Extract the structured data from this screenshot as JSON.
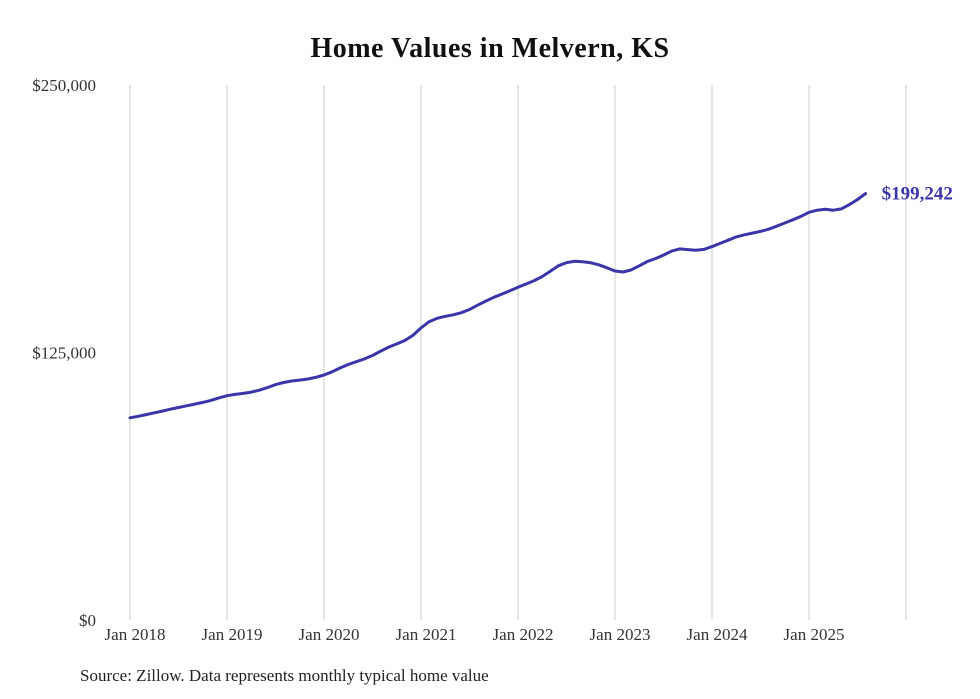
{
  "page": {
    "source_note": "Source: Zillow. Data represents monthly typical home value"
  },
  "chart_data": {
    "type": "line",
    "title": "Home Values in Melvern, KS",
    "series_name": "Monthly typical home value",
    "x_start": "Jan 2018",
    "x_end": "Aug 2025",
    "x_tick_labels": [
      "Jan 2018",
      "Jan 2019",
      "Jan 2020",
      "Jan 2021",
      "Jan 2022",
      "Jan 2023",
      "Jan 2024",
      "Jan 2025"
    ],
    "y_tick_labels": [
      "$0",
      "$125,000",
      "$250,000"
    ],
    "y_ticks": [
      0,
      125000,
      250000
    ],
    "ylim": [
      0,
      250000
    ],
    "grid": "vertical-only",
    "legend": "none",
    "line_color": "#3a35a8",
    "end_label": "$199,242",
    "end_value": 199242,
    "values": [
      94500,
      95200,
      96000,
      96800,
      97600,
      98500,
      99300,
      100100,
      100900,
      101700,
      102600,
      103800,
      104800,
      105400,
      105900,
      106500,
      107400,
      108600,
      110000,
      111000,
      111700,
      112100,
      112600,
      113400,
      114500,
      116000,
      117800,
      119400,
      120700,
      122000,
      123600,
      125600,
      127500,
      129000,
      130600,
      133000,
      136500,
      139400,
      141000,
      141900,
      142600,
      143600,
      145100,
      147100,
      149000,
      150800,
      152300,
      153900,
      155500,
      157000,
      158600,
      160500,
      163000,
      165500,
      167000,
      167600,
      167400,
      166900,
      166000,
      164600,
      163100,
      162600,
      163600,
      165500,
      167500,
      168900,
      170500,
      172400,
      173400,
      173100,
      172800,
      173200,
      174500,
      176000,
      177500,
      179000,
      180000,
      180800,
      181600,
      182600,
      184000,
      185500,
      187000,
      188600,
      190500,
      191500,
      191900,
      191500,
      192100,
      194100,
      196500,
      199242
    ]
  }
}
